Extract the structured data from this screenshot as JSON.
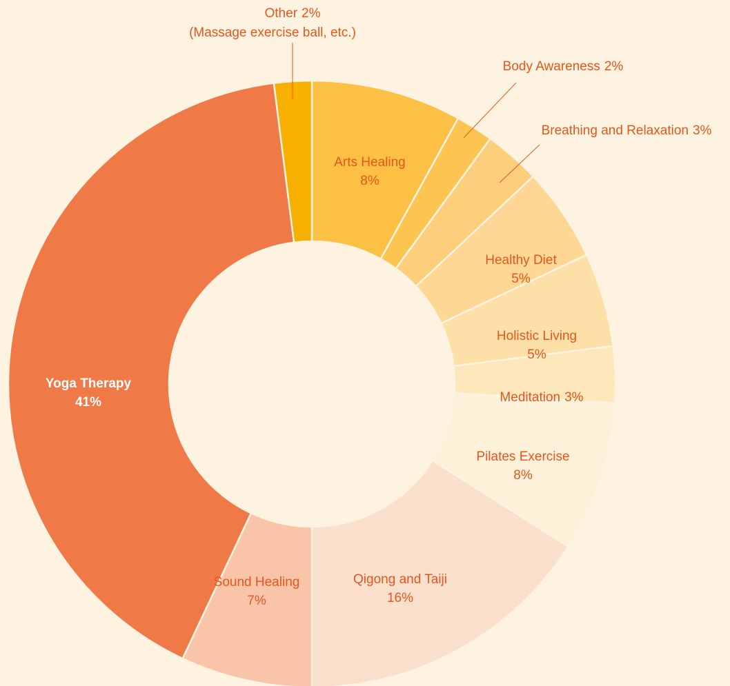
{
  "chart_data": {
    "type": "donut",
    "categories": [
      "Arts Healing",
      "Body Awareness",
      "Breathing and Relaxation",
      "Healthy Diet",
      "Holistic Living",
      "Meditation",
      "Pilates Exercise",
      "Qigong and Taiji",
      "Sound Healing",
      "Yoga Therapy",
      "Other"
    ],
    "values": [
      8,
      2,
      3,
      5,
      5,
      3,
      8,
      16,
      7,
      41,
      2
    ],
    "value_labels": [
      "8%",
      "2%",
      "3%",
      "5%",
      "5%",
      "3%",
      "8%",
      "16%",
      "7%",
      "41%",
      "2%"
    ],
    "colors": [
      "#fcc044",
      "#fcc552",
      "#fdcf7c",
      "#fdd793",
      "#fde0a8",
      "#fee7ba",
      "#fef1da",
      "#fbdfcd",
      "#f9c4a8",
      "#ef7a48",
      "#f8b000"
    ],
    "annotation": "(Massage exercise ball, etc.)"
  }
}
